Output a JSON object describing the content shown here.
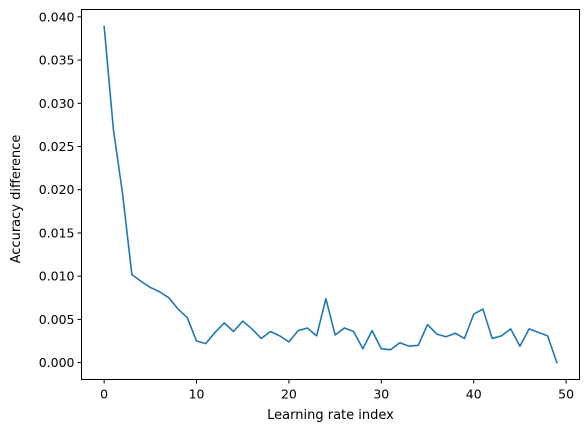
{
  "chart_data": {
    "type": "line",
    "title": "",
    "xlabel": "Learning rate index",
    "ylabel": "Accuracy difference",
    "xlim": [
      -2.45,
      51.45
    ],
    "ylim": [
      -0.00195,
      0.04085
    ],
    "xticks": [
      0,
      10,
      20,
      30,
      40,
      50
    ],
    "xtick_labels": [
      "0",
      "10",
      "20",
      "30",
      "40",
      "50"
    ],
    "yticks": [
      0.0,
      0.005,
      0.01,
      0.015,
      0.02,
      0.025,
      0.03,
      0.035,
      0.04
    ],
    "ytick_labels": [
      "0.000",
      "0.005",
      "0.010",
      "0.015",
      "0.020",
      "0.025",
      "0.030",
      "0.035",
      "0.040"
    ],
    "grid": false,
    "legend": "none",
    "series": [
      {
        "color": "#1f77b4",
        "x": [
          0,
          1,
          2,
          3,
          4,
          5,
          6,
          7,
          8,
          9,
          10,
          11,
          12,
          13,
          14,
          15,
          16,
          17,
          18,
          19,
          20,
          21,
          22,
          23,
          24,
          25,
          26,
          27,
          28,
          29,
          30,
          31,
          32,
          33,
          34,
          35,
          36,
          37,
          38,
          39,
          40,
          41,
          42,
          43,
          44,
          45,
          46,
          47,
          48,
          49
        ],
        "values": [
          0.0389,
          0.027,
          0.0195,
          0.0102,
          0.0094,
          0.0087,
          0.0082,
          0.0075,
          0.0062,
          0.0052,
          0.0025,
          0.0022,
          0.0035,
          0.0046,
          0.0036,
          0.0048,
          0.0039,
          0.0028,
          0.0036,
          0.0031,
          0.0024,
          0.0037,
          0.004,
          0.0031,
          0.0074,
          0.0032,
          0.004,
          0.0036,
          0.0016,
          0.0037,
          0.0016,
          0.0015,
          0.0023,
          0.0019,
          0.002,
          0.0044,
          0.0033,
          0.003,
          0.0034,
          0.0028,
          0.0056,
          0.0062,
          0.0028,
          0.0031,
          0.0039,
          0.0019,
          0.0039,
          0.0035,
          0.0031,
          0.0
        ]
      }
    ]
  }
}
